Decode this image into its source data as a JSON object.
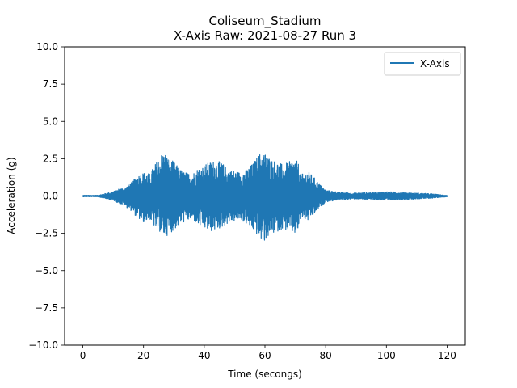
{
  "chart_data": {
    "type": "line",
    "title_line1": "Coliseum_Stadium",
    "title_line2": "X-Axis Raw: 2021-08-27 Run 3",
    "xlabel": "Time (secongs)",
    "ylabel": "Acceleration (g)",
    "xlim": [
      -6,
      126
    ],
    "ylim": [
      -10,
      10
    ],
    "x_ticks": [
      0,
      20,
      40,
      60,
      80,
      100,
      120
    ],
    "x_tick_labels": [
      "0",
      "20",
      "40",
      "60",
      "80",
      "100",
      "120"
    ],
    "y_ticks": [
      -10,
      -7.5,
      -5,
      -2.5,
      0,
      2.5,
      5,
      7.5,
      10
    ],
    "y_tick_labels": [
      "−10.0",
      "−7.5",
      "−5.0",
      "−2.5",
      "0.0",
      "2.5",
      "5.0",
      "7.5",
      "10.0"
    ],
    "grid": false,
    "legend_position": "top-right",
    "series": [
      {
        "name": "X-Axis",
        "color": "#1f77b4",
        "x_range": [
          0,
          120
        ],
        "envelope": {
          "t": [
            0,
            5,
            6,
            8,
            10,
            12,
            14,
            16,
            18,
            20,
            22,
            24,
            26,
            27,
            28,
            30,
            32,
            34,
            36,
            38,
            40,
            42,
            44,
            46,
            48,
            50,
            52,
            54,
            56,
            58,
            59,
            60,
            62,
            64,
            66,
            68,
            70,
            71,
            72,
            73,
            74,
            76,
            78,
            80,
            85,
            90,
            95,
            100,
            105,
            110,
            115,
            118,
            120
          ],
          "upper": [
            0.05,
            0.05,
            0.1,
            0.2,
            0.3,
            0.5,
            0.6,
            0.9,
            1.4,
            1.6,
            1.5,
            2.2,
            2.9,
            3.0,
            2.6,
            2.3,
            1.8,
            1.6,
            1.5,
            1.9,
            2.1,
            2.3,
            2.4,
            2.2,
            1.8,
            1.7,
            1.6,
            1.8,
            2.2,
            2.8,
            3.0,
            2.9,
            2.5,
            2.3,
            2.1,
            2.3,
            2.5,
            2.2,
            1.4,
            1.6,
            1.7,
            1.3,
            0.8,
            0.4,
            0.25,
            0.2,
            0.25,
            0.3,
            0.25,
            0.2,
            0.15,
            0.08,
            0.05
          ],
          "lower": [
            -0.05,
            -0.05,
            -0.1,
            -0.2,
            -0.3,
            -0.5,
            -0.7,
            -1.0,
            -1.5,
            -1.8,
            -1.6,
            -2.2,
            -2.5,
            -2.8,
            -2.6,
            -2.3,
            -1.9,
            -1.7,
            -1.6,
            -2.0,
            -2.2,
            -2.4,
            -2.3,
            -2.1,
            -1.8,
            -1.7,
            -1.6,
            -1.9,
            -2.3,
            -2.8,
            -3.1,
            -3.0,
            -2.6,
            -2.4,
            -2.2,
            -2.4,
            -2.6,
            -2.3,
            -1.4,
            -1.6,
            -1.7,
            -1.3,
            -0.8,
            -0.4,
            -0.25,
            -0.2,
            -0.25,
            -0.3,
            -0.25,
            -0.2,
            -0.15,
            -0.08,
            -0.05
          ]
        }
      }
    ]
  }
}
